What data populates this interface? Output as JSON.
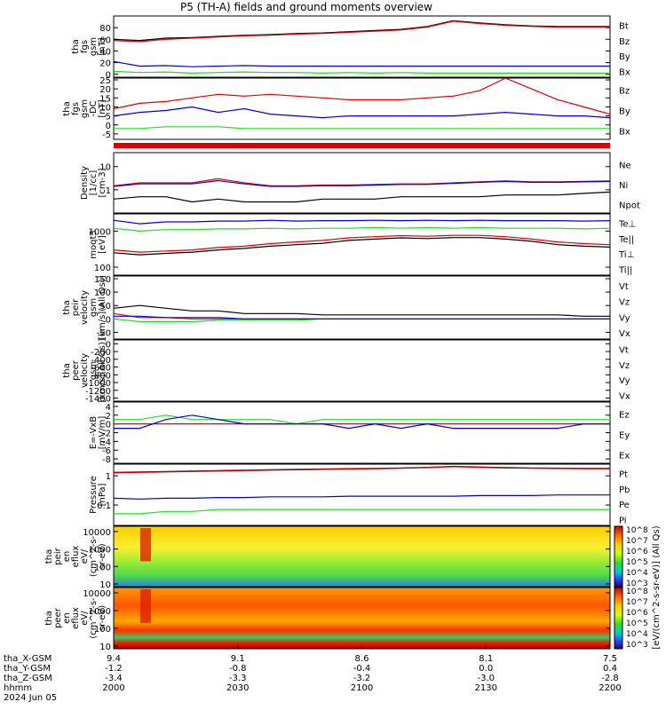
{
  "title": "P5 (TH-A) fields and ground moments overview",
  "colors": {
    "black": "#000000",
    "red": "#e00000",
    "green": "#22dd22",
    "blue": "#0000dd"
  },
  "chart_data": [
    {
      "type": "line",
      "id": "fgs_all",
      "ylabel": [
        "tha",
        "fgs",
        "gsm",
        "[nT]"
      ],
      "yticks": [
        0,
        20,
        40,
        60,
        80
      ],
      "ylim": [
        -5,
        100
      ],
      "legend": [
        "Bt",
        "Bz",
        "By",
        "Bx"
      ],
      "series": [
        {
          "name": "Bt",
          "color": "black",
          "values": [
            60,
            58,
            62,
            63,
            65,
            67,
            68,
            70,
            71,
            73,
            75,
            77,
            82,
            92,
            88,
            85,
            83,
            82,
            82,
            82
          ]
        },
        {
          "name": "Bz",
          "color": "red",
          "values": [
            58,
            56,
            60,
            62,
            64,
            66,
            67,
            69,
            70,
            72,
            74,
            76,
            81,
            91,
            87,
            84,
            82,
            81,
            81,
            81
          ]
        },
        {
          "name": "By",
          "color": "green",
          "values": [
            5,
            3,
            4,
            2,
            3,
            4,
            3,
            3,
            2,
            3,
            2,
            3,
            2,
            2,
            2,
            2,
            2,
            2,
            2,
            2
          ]
        },
        {
          "name": "Bx",
          "color": "blue",
          "values": [
            22,
            14,
            15,
            13,
            14,
            15,
            14,
            14,
            14,
            14,
            14,
            14,
            14,
            14,
            14,
            14,
            14,
            14,
            14,
            14
          ]
        }
      ]
    },
    {
      "type": "line",
      "id": "fgs_zoom",
      "ylabel": [
        "tha",
        "fgs",
        "gsm",
        "-DC",
        "[nT]"
      ],
      "yticks": [
        -5,
        0,
        5,
        10,
        15,
        20,
        25
      ],
      "ylim": [
        -8,
        26
      ],
      "legend": [
        "Bz",
        "By",
        "Bx"
      ],
      "series": [
        {
          "name": "Bz",
          "color": "red",
          "values": [
            9,
            12,
            13,
            15,
            17,
            16,
            17,
            16,
            15,
            14,
            14,
            14,
            15,
            16,
            19,
            26,
            20,
            14,
            10,
            6
          ]
        },
        {
          "name": "By",
          "color": "green",
          "values": [
            -2,
            -2,
            -1,
            -1,
            -1,
            -2,
            -2,
            -2,
            -2,
            -2,
            -2,
            -2,
            -2,
            -2,
            -2,
            -2,
            -2,
            -2,
            -2,
            -2
          ]
        },
        {
          "name": "Bx",
          "color": "blue",
          "values": [
            5,
            7,
            8,
            10,
            7,
            9,
            6,
            5,
            4,
            5,
            5,
            5,
            5,
            5,
            6,
            7,
            6,
            5,
            5,
            4
          ]
        }
      ]
    },
    {
      "type": "line",
      "id": "density",
      "scale": "log",
      "ylabel": [
        "Density",
        "[1/cc]",
        "[cm-3]"
      ],
      "yticks": [
        1,
        10
      ],
      "ylim": [
        0.1,
        40
      ],
      "legend": [
        "Ne",
        "Ni",
        "Npot"
      ],
      "series": [
        {
          "name": "Ne",
          "color": "red",
          "values": [
            1.5,
            2,
            2,
            2,
            3,
            2,
            1.5,
            1.5,
            1.6,
            1.6,
            1.7,
            1.8,
            1.8,
            2,
            2.2,
            2.4,
            2.2,
            2.2,
            2.3,
            2.4
          ]
        },
        {
          "name": "Ni",
          "color": "black",
          "values": [
            0.4,
            0.5,
            0.5,
            0.3,
            0.4,
            0.3,
            0.3,
            0.3,
            0.4,
            0.4,
            0.4,
            0.5,
            0.5,
            0.5,
            0.5,
            0.6,
            0.6,
            0.6,
            0.7,
            0.8
          ]
        },
        {
          "name": "Npot",
          "color": "blue",
          "values": [
            1.4,
            1.8,
            1.8,
            1.8,
            2.5,
            1.8,
            1.4,
            1.4,
            1.5,
            1.5,
            1.6,
            1.7,
            1.7,
            1.9,
            2.1,
            2.3,
            2.1,
            2.1,
            2.2,
            2.3
          ]
        }
      ]
    },
    {
      "type": "line",
      "id": "temperature",
      "scale": "log",
      "ylabel": [
        "moqt3",
        "[eV]"
      ],
      "yticks": [
        100,
        1000
      ],
      "ylim": [
        60,
        3000
      ],
      "legend": [
        "Te⊥",
        "Te||",
        "Ti⊥",
        "Ti||"
      ],
      "series": [
        {
          "name": "Te⊥",
          "color": "red",
          "values": [
            300,
            260,
            280,
            300,
            350,
            380,
            450,
            500,
            550,
            650,
            700,
            750,
            720,
            760,
            760,
            700,
            600,
            500,
            450,
            420
          ]
        },
        {
          "name": "Te||",
          "color": "black",
          "values": [
            250,
            220,
            240,
            260,
            300,
            330,
            380,
            420,
            460,
            550,
            600,
            650,
            620,
            660,
            660,
            600,
            520,
            420,
            380,
            360
          ]
        },
        {
          "name": "Ti⊥",
          "color": "blue",
          "values": [
            2000,
            1600,
            1800,
            1800,
            1900,
            1900,
            2000,
            1900,
            1950,
            1950,
            2000,
            1950,
            2000,
            1950,
            2000,
            1950,
            1950,
            1950,
            1900,
            1950
          ]
        },
        {
          "name": "Ti||",
          "color": "green",
          "values": [
            1200,
            1000,
            1100,
            1100,
            1150,
            1150,
            1200,
            1150,
            1200,
            1200,
            1250,
            1200,
            1250,
            1200,
            1250,
            1200,
            1200,
            1200,
            1150,
            1200
          ]
        }
      ]
    },
    {
      "type": "line",
      "id": "peir_velocity",
      "ylabel": [
        "tha",
        "peir",
        "velocity",
        "gsm",
        "[km/s](All Qs)]"
      ],
      "yticks": [
        -50,
        0,
        50,
        100,
        150
      ],
      "ylim": [
        -75,
        160
      ],
      "legend": [
        "Vt",
        "Vz",
        "Vy",
        "Vx"
      ],
      "series": [
        {
          "name": "Vt",
          "color": "black",
          "values": [
            40,
            50,
            40,
            30,
            30,
            20,
            20,
            20,
            15,
            15,
            15,
            15,
            15,
            15,
            15,
            15,
            15,
            15,
            10,
            10
          ]
        },
        {
          "name": "Vz",
          "color": "red",
          "values": [
            20,
            5,
            5,
            0,
            0,
            0,
            0,
            0,
            0,
            0,
            0,
            0,
            0,
            0,
            0,
            0,
            0,
            0,
            0,
            0
          ]
        },
        {
          "name": "Vy",
          "color": "green",
          "values": [
            0,
            -10,
            -10,
            -10,
            -5,
            -5,
            -5,
            -5,
            0,
            0,
            0,
            0,
            0,
            0,
            0,
            0,
            0,
            0,
            0,
            0
          ]
        },
        {
          "name": "Vx",
          "color": "blue",
          "values": [
            10,
            10,
            5,
            5,
            5,
            0,
            0,
            0,
            0,
            0,
            0,
            0,
            0,
            0,
            0,
            0,
            0,
            0,
            0,
            0
          ]
        }
      ]
    },
    {
      "type": "line",
      "id": "peer_velocity",
      "ylabel": [
        "tha",
        "peer",
        "velocity",
        "gsm",
        "[km/s](All Qs)]"
      ],
      "yticks": [
        -1400,
        -1200,
        -1000,
        -800,
        -600,
        -400,
        -200,
        0
      ],
      "ylim": [
        -1480,
        100
      ],
      "legend": [
        "Vt",
        "Vz",
        "Vy",
        "Vx"
      ],
      "series": []
    },
    {
      "type": "line",
      "id": "efield",
      "ylabel": [
        "E=-VxB",
        "[mV/m]"
      ],
      "yticks": [
        -8,
        -6,
        -4,
        -2,
        0,
        2,
        4
      ],
      "ylim": [
        -9,
        5
      ],
      "legend": [
        "Ez",
        "Ey",
        "Ex"
      ],
      "series": [
        {
          "name": "Ez",
          "color": "red",
          "values": [
            0,
            0,
            0,
            0,
            0,
            0,
            0,
            0,
            0,
            0,
            0,
            0,
            0,
            0,
            0,
            0,
            0,
            0,
            0,
            0
          ]
        },
        {
          "name": "Ey",
          "color": "green",
          "values": [
            1,
            1,
            2,
            1,
            1,
            1,
            1,
            0,
            1,
            1,
            1,
            1,
            1,
            1,
            1,
            1,
            1,
            1,
            1,
            1
          ]
        },
        {
          "name": "Ex",
          "color": "blue",
          "values": [
            -1,
            -1,
            1,
            2,
            1,
            0,
            0,
            0,
            0,
            -1,
            0,
            -1,
            0,
            -1,
            -1,
            -1,
            -1,
            -1,
            0,
            0
          ]
        }
      ]
    },
    {
      "type": "line",
      "id": "pressure",
      "scale": "log",
      "ylabel": [
        "Pressure",
        "[nPa]"
      ],
      "yticks": [
        0.1,
        1.0
      ],
      "ylim": [
        0.02,
        2.5
      ],
      "legend": [
        "Pt",
        "Pb",
        "Pe",
        "Pi"
      ],
      "series": [
        {
          "name": "Pt",
          "color": "black",
          "values": [
            1.3,
            1.35,
            1.4,
            1.45,
            1.5,
            1.55,
            1.6,
            1.65,
            1.7,
            1.75,
            1.8,
            1.85,
            1.95,
            2.1,
            2.0,
            1.9,
            1.85,
            1.82,
            1.8,
            1.8
          ]
        },
        {
          "name": "Pb",
          "color": "red",
          "values": [
            1.25,
            1.3,
            1.35,
            1.4,
            1.45,
            1.5,
            1.55,
            1.6,
            1.65,
            1.7,
            1.75,
            1.8,
            1.9,
            2.05,
            1.95,
            1.85,
            1.8,
            1.77,
            1.75,
            1.75
          ]
        },
        {
          "name": "Pe",
          "color": "green",
          "values": [
            0.05,
            0.05,
            0.06,
            0.06,
            0.07,
            0.07,
            0.07,
            0.07,
            0.07,
            0.07,
            0.07,
            0.07,
            0.07,
            0.07,
            0.07,
            0.07,
            0.07,
            0.07,
            0.07,
            0.07
          ]
        },
        {
          "name": "Pi",
          "color": "blue",
          "values": [
            0.17,
            0.16,
            0.17,
            0.17,
            0.18,
            0.18,
            0.19,
            0.19,
            0.19,
            0.2,
            0.2,
            0.2,
            0.2,
            0.2,
            0.21,
            0.21,
            0.21,
            0.22,
            0.22,
            0.22
          ]
        }
      ]
    },
    {
      "type": "heatmap",
      "id": "peir_spec",
      "scale": "log",
      "ylabel": [
        "tha",
        "peir",
        "en",
        "eflux",
        "eV/",
        "(cm^2-s-",
        "sr-eV)"
      ],
      "yticks": [
        10,
        100,
        1000,
        10000
      ],
      "ylim": [
        7,
        20000
      ]
    },
    {
      "type": "heatmap",
      "id": "peer_spec",
      "scale": "log",
      "ylabel": [
        "tha",
        "peer",
        "en",
        "eflux",
        "eV/",
        "(cm^2-s-",
        "sr-eV)"
      ],
      "yticks": [
        10,
        100,
        1000,
        10000
      ],
      "ylim": [
        7,
        20000
      ]
    }
  ],
  "colorbar": {
    "label": "[eV/(cm^2-s-sr-eV)] (All Qs)",
    "top_ticks": [
      "10^8",
      "10^7",
      "10^6",
      "10^5",
      "10^4",
      "10^3"
    ],
    "bottom_ticks": [
      "10^8",
      "10^7",
      "10^6",
      "10^5",
      "10^4",
      "10^3"
    ]
  },
  "x_axis": {
    "row_labels": [
      "tha_X-GSM",
      "tha_Y-GSM",
      "tha_Z-GSM",
      "hhmm",
      "2024 Jun 05"
    ],
    "x": [
      "2000",
      "2030",
      "2100",
      "2130",
      "2200"
    ],
    "tick_values": [
      [
        "9.4",
        "9.1",
        "8.6",
        "8.1",
        "7.5"
      ],
      [
        "-1.2",
        "-0.8",
        "-0.4",
        "0.0",
        "0.4"
      ],
      [
        "-3.4",
        "-3.3",
        "-3.2",
        "-3.0",
        "-2.8"
      ],
      [
        "2000",
        "2030",
        "2100",
        "2130",
        "2200"
      ]
    ]
  }
}
